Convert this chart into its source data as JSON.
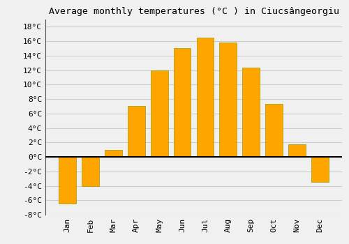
{
  "title": "Average monthly temperatures (°C ) in Ciucsângeorgiu",
  "months": [
    "Jan",
    "Feb",
    "Mar",
    "Apr",
    "May",
    "Jun",
    "Jul",
    "Aug",
    "Sep",
    "Oct",
    "Nov",
    "Dec"
  ],
  "values": [
    -6.5,
    -4.0,
    1.0,
    7.0,
    12.0,
    15.0,
    16.5,
    15.8,
    12.3,
    7.3,
    1.7,
    -3.5
  ],
  "bar_color": "#FFA500",
  "bar_edge_color": "#999900",
  "background_color": "#f0f0f0",
  "grid_color": "#cccccc",
  "ylim": [
    -8,
    19
  ],
  "yticks": [
    -8,
    -6,
    -4,
    -2,
    0,
    2,
    4,
    6,
    8,
    10,
    12,
    14,
    16,
    18
  ],
  "ytick_labels": [
    "-8°C",
    "-6°C",
    "-4°C",
    "-2°C",
    "0°C",
    "2°C",
    "4°C",
    "6°C",
    "8°C",
    "10°C",
    "12°C",
    "14°C",
    "16°C",
    "18°C"
  ],
  "title_fontsize": 9.5,
  "tick_fontsize": 8,
  "font_family": "monospace",
  "bar_width": 0.75
}
